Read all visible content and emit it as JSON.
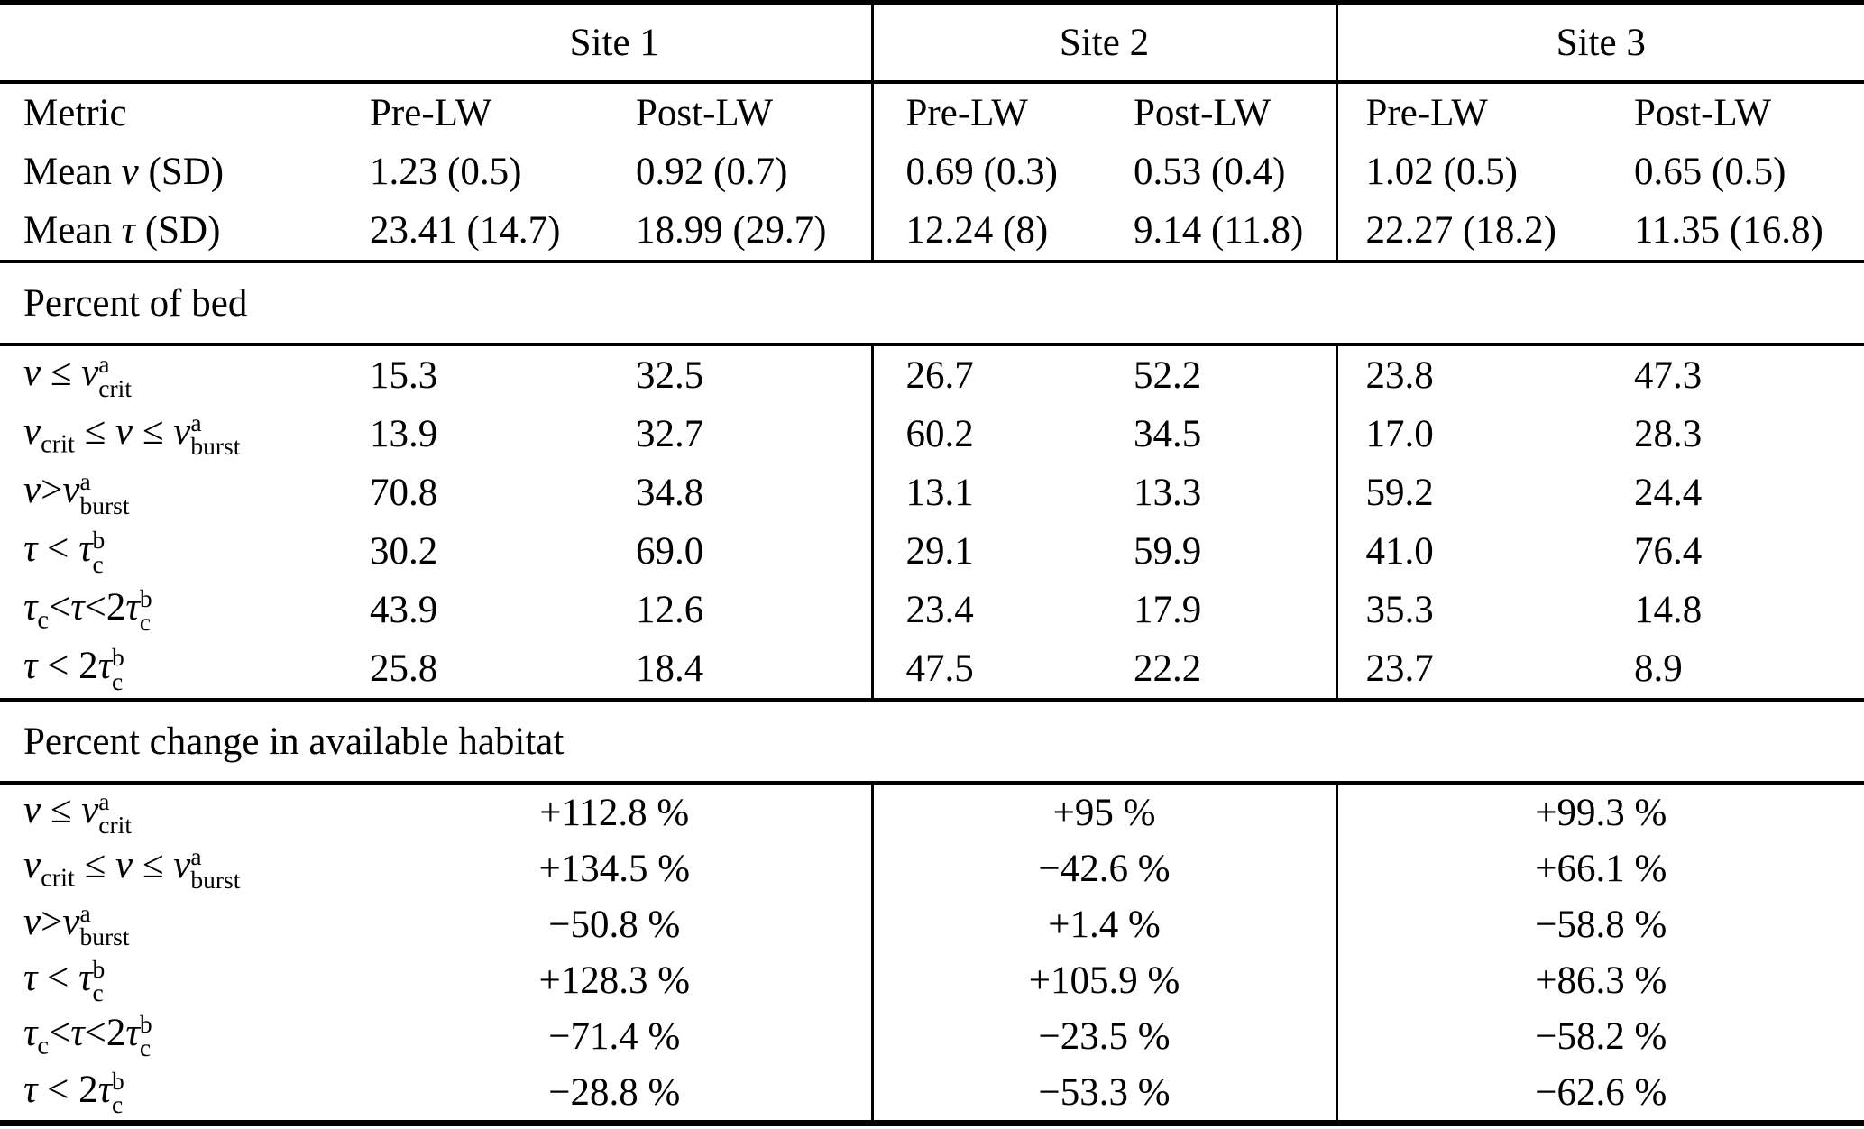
{
  "table": {
    "site_headers": [
      "Site 1",
      "Site 2",
      "Site 3"
    ],
    "columns": {
      "metric": "Metric",
      "pre": "Pre-LW",
      "post": "Post-LW"
    },
    "summary": {
      "rows": [
        {
          "label": "Mean <i>v</i> (SD)",
          "values": [
            "1.23 (0.5)",
            "0.92 (0.7)",
            "0.69 (0.3)",
            "0.53 (0.4)",
            "1.02 (0.5)",
            "0.65 (0.5)"
          ]
        },
        {
          "label": "Mean <i>τ</i> (SD)",
          "values": [
            "23.41 (14.7)",
            "18.99 (29.7)",
            "12.24 (8)",
            "9.14 (11.8)",
            "22.27 (18.2)",
            "11.35 (16.8)"
          ]
        }
      ]
    },
    "percent_of_bed": {
      "title": "Percent of bed",
      "rows": [
        {
          "label": "<i>v</i> ≤ <i>v</i><span class='stk'><span>a</span><span>crit</span></span>",
          "values": [
            "15.3",
            "32.5",
            "26.7",
            "52.2",
            "23.8",
            "47.3"
          ]
        },
        {
          "label": "<i>v</i><sub>crit</sub> ≤ <i>v</i> ≤ <i>v</i><span class='stk'><span>a</span><span>burst</span></span>",
          "values": [
            "13.9",
            "32.7",
            "60.2",
            "34.5",
            "17.0",
            "28.3"
          ]
        },
        {
          "label": "<i>v</i>&gt;<i>v</i><span class='stk'><span>a</span><span>burst</span></span>",
          "values": [
            "70.8",
            "34.8",
            "13.1",
            "13.3",
            "59.2",
            "24.4"
          ]
        },
        {
          "label": "<i>τ</i> &lt; <i>τ</i><span class='stk'><span>b</span><span>c</span></span>",
          "values": [
            "30.2",
            "69.0",
            "29.1",
            "59.9",
            "41.0",
            "76.4"
          ]
        },
        {
          "label": "<i>τ</i><sub>c</sub>&lt;<i>τ</i>&lt;2<i>τ</i><span class='stk'><span>b</span><span>c</span></span>",
          "values": [
            "43.9",
            "12.6",
            "23.4",
            "17.9",
            "35.3",
            "14.8"
          ]
        },
        {
          "label": "<i>τ</i> &lt; 2<i>τ</i><span class='stk'><span>b</span><span>c</span></span>",
          "values": [
            "25.8",
            "18.4",
            "47.5",
            "22.2",
            "23.7",
            "8.9"
          ]
        }
      ]
    },
    "percent_change": {
      "title": "Percent change in available habitat",
      "rows": [
        {
          "label": "<i>v</i> ≤ <i>v</i><span class='stk'><span>a</span><span>crit</span></span>",
          "values": [
            "+112.8 %",
            "+95 %",
            "+99.3 %"
          ]
        },
        {
          "label": "<i>v</i><sub>crit</sub> ≤ <i>v</i> ≤ <i>v</i><span class='stk'><span>a</span><span>burst</span></span>",
          "values": [
            "+134.5 %",
            "−42.6 %",
            "+66.1 %"
          ]
        },
        {
          "label": "<i>v</i>&gt;<i>v</i><span class='stk'><span>a</span><span>burst</span></span>",
          "values": [
            "−50.8 %",
            "+1.4 %",
            "−58.8 %"
          ]
        },
        {
          "label": "<i>τ</i> &lt; <i>τ</i><span class='stk'><span>b</span><span>c</span></span>",
          "values": [
            "+128.3 %",
            "+105.9 %",
            "+86.3 %"
          ]
        },
        {
          "label": "<i>τ</i><sub>c</sub>&lt;<i>τ</i>&lt;2<i>τ</i><span class='stk'><span>b</span><span>c</span></span>",
          "values": [
            "−71.4 %",
            "−23.5 %",
            "−58.2 %"
          ]
        },
        {
          "label": "<i>τ</i> &lt; 2<i>τ</i><span class='stk'><span>b</span><span>c</span></span>",
          "values": [
            "−28.8 %",
            "−53.3 %",
            "−62.6 %"
          ]
        }
      ]
    }
  }
}
